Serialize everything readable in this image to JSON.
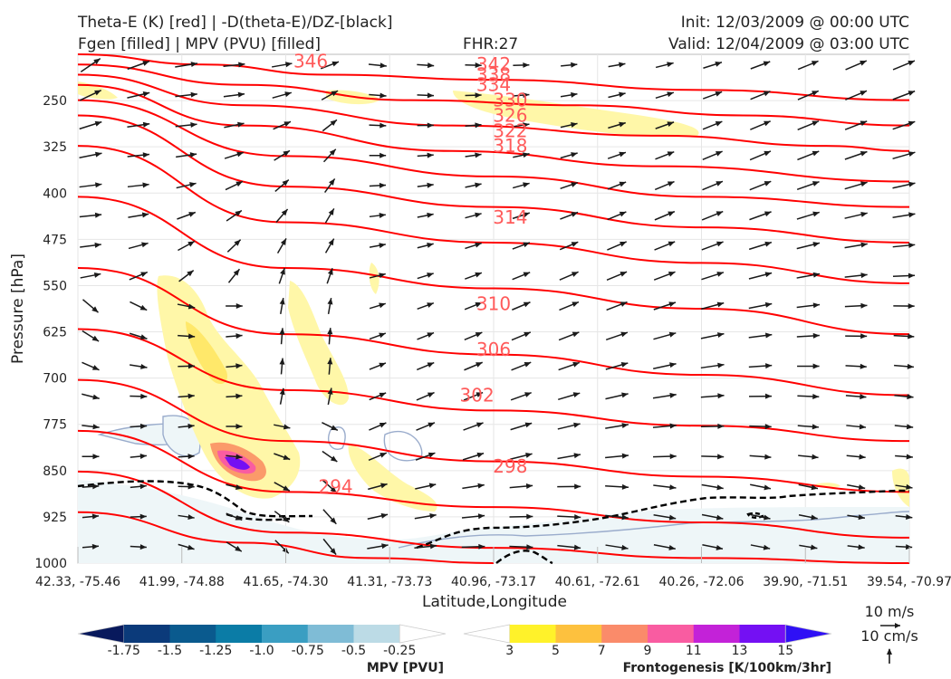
{
  "header": {
    "left_line1": "Theta-E (K) [red] | -D(theta-E)/DZ-[black]",
    "left_line2": "Fgen [filled] | MPV (PVU) [filled]",
    "fhr": "FHR:27",
    "init": "Init: 12/03/2009 @ 00:00 UTC",
    "valid": "Valid: 12/04/2009 @ 03:00 UTC"
  },
  "chart_data": {
    "type": "cross-section",
    "xlabel": "Latitude,Longitude",
    "ylabel": "Pressure [hPa]",
    "x_tick_labels": [
      "42.33, -75.46",
      "41.99, -74.88",
      "41.65, -74.30",
      "41.31, -73.73",
      "40.96, -73.17",
      "40.61, -72.61",
      "40.26, -72.06",
      "39.90, -71.51",
      "39.54, -70.97"
    ],
    "y_ticks": [
      250,
      325,
      400,
      475,
      550,
      625,
      700,
      775,
      850,
      925,
      1000
    ],
    "y_range": [
      175,
      1000
    ],
    "grid": true,
    "colors": {
      "theta_e": "#ff0000",
      "theta_e_labels": "#ff5a5a",
      "wind": "#1a1a1a",
      "neg_dthetae_dz": "#000000",
      "mpv_outline": "#9aaccc"
    },
    "theta_e_contours": [
      {
        "label": "346",
        "level_index": 0,
        "pts": [
          [
            0,
            0.0
          ],
          [
            0.15,
            0.02
          ],
          [
            0.3,
            0.04
          ],
          [
            0.5,
            0.05
          ],
          [
            0.75,
            0.07
          ],
          [
            1,
            0.09
          ]
        ]
      },
      {
        "label": "342",
        "level_index": 1,
        "pts": [
          [
            0,
            0.02
          ],
          [
            0.2,
            0.06
          ],
          [
            0.4,
            0.09
          ],
          [
            0.6,
            0.1
          ],
          [
            0.8,
            0.12
          ],
          [
            1,
            0.14
          ]
        ]
      },
      {
        "label": "338",
        "level_index": 2,
        "pts": [
          [
            0,
            0.04
          ],
          [
            0.2,
            0.1
          ],
          [
            0.45,
            0.14
          ],
          [
            0.7,
            0.16
          ],
          [
            0.9,
            0.18
          ],
          [
            1,
            0.19
          ]
        ]
      },
      {
        "label": "334",
        "level_index": 3,
        "pts": [
          [
            0,
            0.06
          ],
          [
            0.2,
            0.14
          ],
          [
            0.45,
            0.19
          ],
          [
            0.7,
            0.22
          ],
          [
            1,
            0.25
          ]
        ]
      },
      {
        "label": "330",
        "level_index": 4,
        "pts": [
          [
            0,
            0.09
          ],
          [
            0.25,
            0.2
          ],
          [
            0.5,
            0.24
          ],
          [
            0.75,
            0.28
          ],
          [
            1,
            0.3
          ]
        ]
      },
      {
        "label": "326",
        "level_index": 5,
        "pts": [
          [
            0,
            0.12
          ],
          [
            0.25,
            0.26
          ],
          [
            0.5,
            0.3
          ],
          [
            0.75,
            0.34
          ],
          [
            1,
            0.37
          ]
        ]
      },
      {
        "label": "322",
        "level_index": 6,
        "pts": [
          [
            0,
            0.18
          ],
          [
            0.25,
            0.33
          ],
          [
            0.5,
            0.37
          ],
          [
            0.75,
            0.41
          ],
          [
            1,
            0.45
          ]
        ]
      },
      {
        "label": "318",
        "level_index": 7,
        "pts": [
          [
            0,
            0.28
          ],
          [
            0.25,
            0.42
          ],
          [
            0.5,
            0.46
          ],
          [
            0.75,
            0.5
          ],
          [
            1,
            0.55
          ]
        ]
      },
      {
        "label": "314",
        "level_index": 8,
        "pts": [
          [
            0,
            0.42
          ],
          [
            0.25,
            0.55
          ],
          [
            0.5,
            0.59
          ],
          [
            0.75,
            0.63
          ],
          [
            1,
            0.67
          ]
        ]
      },
      {
        "label": "310",
        "level_index": 9,
        "pts": [
          [
            0,
            0.54
          ],
          [
            0.25,
            0.66
          ],
          [
            0.5,
            0.7
          ],
          [
            0.75,
            0.73
          ],
          [
            1,
            0.76
          ]
        ]
      },
      {
        "label": "306",
        "level_index": 10,
        "pts": [
          [
            0,
            0.64
          ],
          [
            0.25,
            0.76
          ],
          [
            0.5,
            0.8
          ],
          [
            0.75,
            0.83
          ],
          [
            1,
            0.86
          ]
        ]
      },
      {
        "label": "302",
        "level_index": 11,
        "pts": [
          [
            0,
            0.74
          ],
          [
            0.25,
            0.86
          ],
          [
            0.5,
            0.89
          ],
          [
            0.75,
            0.92
          ],
          [
            1,
            0.95
          ]
        ]
      },
      {
        "label": "298",
        "level_index": 12,
        "pts": [
          [
            0,
            0.82
          ],
          [
            0.25,
            0.94
          ],
          [
            0.5,
            0.97
          ],
          [
            0.75,
            0.99
          ],
          [
            1,
            1.0
          ]
        ]
      },
      {
        "label": "294",
        "level_index": 13,
        "pts": [
          [
            0,
            0.9
          ],
          [
            0.2,
            0.96
          ],
          [
            0.35,
            0.99
          ],
          [
            0.5,
            1.0
          ]
        ]
      }
    ],
    "fgen_colorbar": {
      "title": "Frontogenesis [K/100km/3hr]",
      "ticks": [
        "3",
        "5",
        "7",
        "9",
        "11",
        "13",
        "15"
      ],
      "colors": [
        "#ffffff",
        "#fff22a",
        "#fdc13e",
        "#fa8b6a",
        "#f95ca1",
        "#c322d8",
        "#7410f3",
        "#2f10f5"
      ]
    },
    "mpv_colorbar": {
      "title": "MPV [PVU]",
      "ticks": [
        "-1.75",
        "-1.5",
        "-1.25",
        "-1.0",
        "-0.75",
        "-0.5",
        "-0.25"
      ],
      "colors": [
        "#08195c",
        "#0b3a7a",
        "#0a5a8e",
        "#0b7ca6",
        "#3a9ec2",
        "#7fbcd6",
        "#bcdbe6",
        "#ffffff"
      ]
    },
    "wind_key": {
      "horizontal": "10 m/s",
      "vertical": "10 cm/s"
    }
  }
}
